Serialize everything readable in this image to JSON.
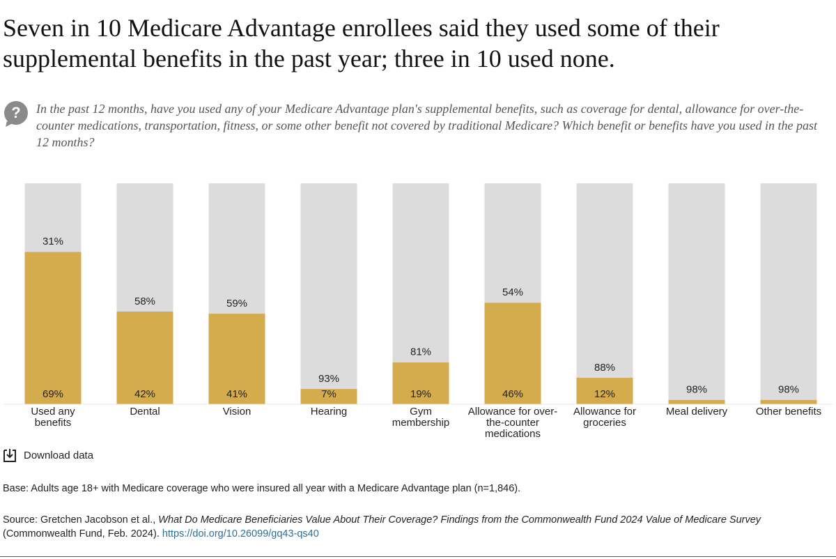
{
  "chart_data": {
    "type": "stacked-bar",
    "title": "Seven in 10 Medicare Advantage enrollees said they used some of their supplemental benefits in the past year; three in 10 used none.",
    "subtitle": "In the past 12 months, have you used any of your Medicare Advantage plan's supplemental benefits, such as coverage for dental, allowance for over-the-counter medications, transportation, fitness, or some other benefit not covered by traditional Medicare? Which benefit or benefits have you used in the past 12 months?",
    "categories": [
      "Used any benefits",
      "Dental",
      "Vision",
      "Hearing",
      "Gym membership",
      "Allowance for over-the-counter medications",
      "Allowance for groceries",
      "Meal delivery",
      "Other benefits"
    ],
    "series": [
      {
        "color": "#d4ab4d",
        "values": [
          69,
          42,
          41,
          7,
          19,
          46,
          12,
          2,
          2
        ],
        "value_labels": [
          "69%",
          "42%",
          "41%",
          "7%",
          "19%",
          "46%",
          "12%",
          null,
          null
        ]
      },
      {
        "color": "#dcdcdc",
        "values": [
          31,
          58,
          59,
          93,
          81,
          54,
          88,
          98,
          98
        ],
        "value_labels": [
          "31%",
          "58%",
          "59%",
          "93%",
          "81%",
          "54%",
          "88%",
          "98%",
          "98%"
        ]
      }
    ],
    "ylim": [
      0,
      100
    ],
    "download": "Download data",
    "base": "Base: Adults age 18+ with Medicare coverage who were insured all year with a Medicare Advantage plan (n=1,846).",
    "source": {
      "prefix": "Source: Gretchen Jacobson et al., ",
      "work": "What Do Medicare Beneficiaries Value About Their Coverage? Findings from the Commonwealth Fund 2024 Value of Medicare Survey",
      "suffix": " (Commonwealth Fund, Feb. 2024). ",
      "link": "https://doi.org/10.26099/gq43-qs40"
    }
  }
}
